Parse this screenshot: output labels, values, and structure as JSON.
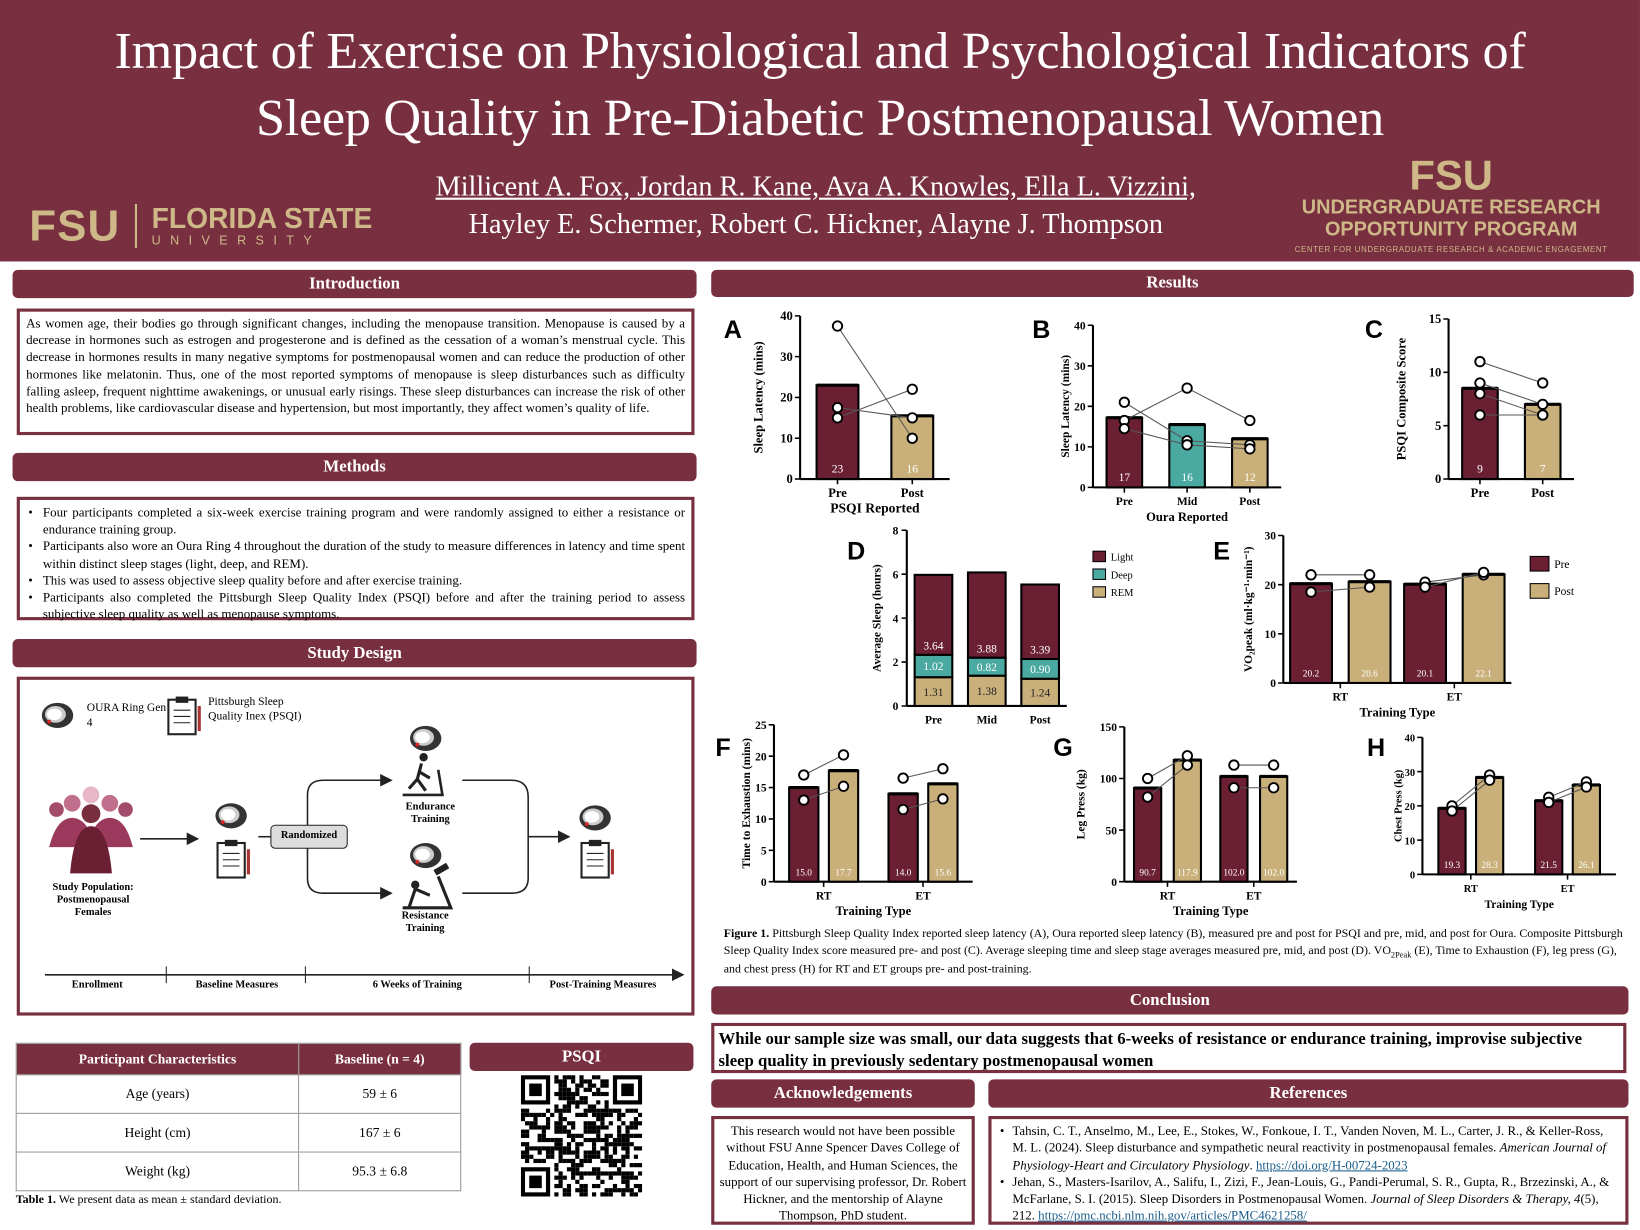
{
  "header": {
    "title_line1": "Impact of Exercise on Physiological and Psychological Indicators of",
    "title_line2": "Sleep Quality in Pre-Diabetic Postmenopausal Women",
    "authors_line1": "Millicent A. Fox, Jordan R. Kane, Ava A. Knowles, Ella L. Vizzini,",
    "authors_line2": "Hayley E. Schermer, Robert C. Hickner, Alayne J. Thompson",
    "logo_left": {
      "mark": "FSU",
      "name": "FLORIDA STATE",
      "sub": "UNIVERSITY"
    },
    "logo_right": {
      "mark": "FSU",
      "line1": "UNDERGRADUATE RESEARCH",
      "line2": "OPPORTUNITY PROGRAM",
      "line3": "CENTER FOR UNDERGRADUATE RESEARCH & ACADEMIC ENGAGEMENT"
    }
  },
  "colors": {
    "garnet": "#782f40",
    "gold": "#ceb888",
    "teal": "#4aa9a0",
    "bar_maroon": "#6b1f33",
    "bar_gold": "#c9b07a"
  },
  "introduction": {
    "title": "Introduction",
    "text": "As women age, their bodies go through significant changes, including the menopause transition.  Menopause is caused by a decrease in hormones such as estrogen and progesterone and is defined as the cessation of a woman’s menstrual cycle. This decrease in hormones results in many negative symptoms for postmenopausal women and can reduce the production of other hormones like melatonin. Thus, one of the most reported symptoms of menopause is sleep disturbances such as difficulty falling asleep, frequent nighttime awakenings, or unusual early risings. These sleep disturbances can increase the risk of other health problems, like cardiovascular disease and hypertension, but most importantly, they affect women’s quality of life."
  },
  "methods": {
    "title": "Methods",
    "bullets": [
      "Four participants completed a six-week exercise training program and were randomly assigned to either a resistance or endurance training group.",
      "Participants also wore an Oura Ring 4 throughout the duration of the study to measure differences in latency and time spent within distinct sleep stages (light, deep, and REM).",
      "This was used to assess objective sleep quality before and after exercise training.",
      "Participants also completed the Pittsburgh Sleep Quality Index (PSQI) before and after the training period to assess subjective sleep quality as well as menopause symptoms."
    ]
  },
  "study_design": {
    "title": "Study Design",
    "ring_label": "OURA Ring Gen 4",
    "psqi_label": "Pittsburgh Sleep Quality Inex (PSQI)",
    "population_label": "Study Population: Postmenopausal Females",
    "randomized": "Randomized",
    "endurance": "Endurance Training",
    "resistance": "Resistance Training",
    "timeline": [
      "Enrollment",
      "Baseline Measures",
      "6 Weeks of Training",
      "Post-Training Measures"
    ]
  },
  "table": {
    "headers": [
      "Participant Characteristics",
      "Baseline (n = 4)"
    ],
    "rows": [
      [
        "Age (years)",
        "59 ± 6"
      ],
      [
        "Height (cm)",
        "167 ± 6"
      ],
      [
        "Weight (kg)",
        "95.3 ± 6.8"
      ]
    ],
    "caption_bold": "Table 1.",
    "caption": " We present data as mean ± standard deviation."
  },
  "psqi": {
    "title": "PSQI"
  },
  "results": {
    "title": "Results"
  },
  "chart_data": [
    {
      "id": "A",
      "type": "bar",
      "panel": "A",
      "ylabel": "Sleep Latency (mins)",
      "xlabel": "PSQI Reported",
      "ylim": [
        0,
        40
      ],
      "ystep": 10,
      "link": "all",
      "groups": [
        {
          "label": "Pre",
          "bars": [
            {
              "value": 23,
              "label": "23",
              "color": "#6b1f33",
              "points": [
                37.5,
                17.5,
                15
              ]
            }
          ]
        },
        {
          "label": "Post",
          "bars": [
            {
              "value": 15.5,
              "label": "16",
              "color": "#c9b07a",
              "points": [
                10,
                15,
                22
              ]
            }
          ]
        }
      ]
    },
    {
      "id": "B",
      "type": "bar",
      "panel": "B",
      "ylabel": "Sleep Latency (mins)",
      "xlabel": "Oura Reported",
      "ylim": [
        0,
        40
      ],
      "ystep": 10,
      "link": "all",
      "groups": [
        {
          "label": "Pre",
          "bars": [
            {
              "value": 17.2,
              "label": "17",
              "color": "#6b1f33",
              "points": [
                21,
                16.5,
                14.5
              ]
            }
          ]
        },
        {
          "label": "Mid",
          "bars": [
            {
              "value": 15.5,
              "label": "16",
              "color": "#4aa9a0",
              "points": [
                11.5,
                24.5,
                10.5
              ]
            }
          ]
        },
        {
          "label": "Post",
          "bars": [
            {
              "value": 12,
              "label": "12",
              "color": "#c9b07a",
              "points": [
                10.5,
                16.5,
                9.5
              ]
            }
          ]
        }
      ]
    },
    {
      "id": "C",
      "type": "bar",
      "panel": "C",
      "ylabel": "PSQI Composite Score",
      "xlabel": "",
      "ylim": [
        0,
        15
      ],
      "ystep": 5,
      "link": "all",
      "groups": [
        {
          "label": "Pre",
          "bars": [
            {
              "value": 8.5,
              "label": "9",
              "color": "#6b1f33",
              "points": [
                11,
                9,
                8,
                6
              ]
            }
          ]
        },
        {
          "label": "Post",
          "bars": [
            {
              "value": 7,
              "label": "7",
              "color": "#c9b07a",
              "points": [
                9,
                7,
                6,
                6
              ]
            }
          ]
        }
      ]
    },
    {
      "id": "D",
      "type": "stacked-bar",
      "panel": "D",
      "ylabel": "Average Sleep (hours)",
      "ylim": [
        0,
        8
      ],
      "ystep": 2,
      "categories": [
        "Pre",
        "Mid",
        "Post"
      ],
      "series": [
        {
          "name": "REM",
          "color": "#c9b07a",
          "values": [
            1.31,
            1.38,
            1.24
          ]
        },
        {
          "name": "Deep",
          "color": "#4aa9a0",
          "values": [
            1.02,
            0.82,
            0.9
          ]
        },
        {
          "name": "Light",
          "color": "#6b1f33",
          "values": [
            3.64,
            3.88,
            3.39
          ]
        }
      ],
      "legend": [
        "Light",
        "Deep",
        "REM"
      ]
    },
    {
      "id": "E",
      "type": "bar",
      "panel": "E",
      "ylabel": "VO₂peak (ml·kg⁻¹·min⁻¹)",
      "xlabel": "Training Type",
      "ylim": [
        0,
        30
      ],
      "ystep": 10,
      "link": "group",
      "legend": [
        {
          "name": "Pre",
          "color": "#6b1f33"
        },
        {
          "name": "Post",
          "color": "#c9b07a"
        }
      ],
      "groups": [
        {
          "label": "RT",
          "bars": [
            {
              "value": 20.2,
              "label": "20.2",
              "color": "#6b1f33",
              "points": [
                22,
                18.5
              ]
            },
            {
              "value": 20.6,
              "label": "20.6",
              "color": "#c9b07a",
              "points": [
                22,
                19.5
              ]
            }
          ]
        },
        {
          "label": "ET",
          "bars": [
            {
              "value": 20.1,
              "label": "20.1",
              "color": "#6b1f33",
              "points": [
                20.5,
                19.5
              ]
            },
            {
              "value": 22.1,
              "label": "22.1",
              "color": "#c9b07a",
              "points": [
                22,
                22.5
              ]
            }
          ]
        }
      ]
    },
    {
      "id": "F",
      "type": "bar",
      "panel": "F",
      "ylabel": "Time to Exhaustion (mins)",
      "xlabel": "Training Type",
      "ylim": [
        0,
        25
      ],
      "ystep": 5,
      "link": "group",
      "groups": [
        {
          "label": "RT",
          "bars": [
            {
              "value": 15.0,
              "label": "15.0",
              "color": "#6b1f33",
              "points": [
                17,
                13
              ]
            },
            {
              "value": 17.7,
              "label": "17.7",
              "color": "#c9b07a",
              "points": [
                20.2,
                15.2
              ]
            }
          ]
        },
        {
          "label": "ET",
          "bars": [
            {
              "value": 14.0,
              "label": "14.0",
              "color": "#6b1f33",
              "points": [
                16.5,
                11.5
              ]
            },
            {
              "value": 15.6,
              "label": "15.6",
              "color": "#c9b07a",
              "points": [
                18,
                13.2
              ]
            }
          ]
        }
      ]
    },
    {
      "id": "G",
      "type": "bar",
      "panel": "G",
      "ylabel": "Leg Press (kg)",
      "xlabel": "Training Type",
      "ylim": [
        0,
        150
      ],
      "ystep": 50,
      "link": "group",
      "groups": [
        {
          "label": "RT",
          "bars": [
            {
              "value": 90.7,
              "label": "90.7",
              "color": "#6b1f33",
              "points": [
                100,
                82
              ]
            },
            {
              "value": 117.9,
              "label": "117.9",
              "color": "#c9b07a",
              "points": [
                122,
                113
              ]
            }
          ]
        },
        {
          "label": "ET",
          "bars": [
            {
              "value": 102.0,
              "label": "102.0",
              "color": "#6b1f33",
              "points": [
                113,
                91
              ]
            },
            {
              "value": 102.0,
              "label": "102.0",
              "color": "#c9b07a",
              "points": [
                113,
                91
              ]
            }
          ]
        }
      ]
    },
    {
      "id": "H",
      "type": "bar",
      "panel": "H",
      "ylabel": "Chest Press (kg)",
      "xlabel": "Training Type",
      "ylim": [
        0,
        40
      ],
      "ystep": 10,
      "link": "group",
      "groups": [
        {
          "label": "RT",
          "bars": [
            {
              "value": 19.3,
              "label": "19.3",
              "color": "#6b1f33",
              "points": [
                20,
                18.5
              ]
            },
            {
              "value": 28.3,
              "label": "28.3",
              "color": "#c9b07a",
              "points": [
                29,
                27.5
              ]
            }
          ]
        },
        {
          "label": "ET",
          "bars": [
            {
              "value": 21.5,
              "label": "21.5",
              "color": "#6b1f33",
              "points": [
                22.5,
                21
              ]
            },
            {
              "value": 26.1,
              "label": "26.1",
              "color": "#c9b07a",
              "points": [
                27,
                25.5
              ]
            }
          ]
        }
      ]
    }
  ],
  "figure_caption": {
    "bold": "Figure 1.",
    "part1": " Pittsburgh Sleep Quality Index reported sleep latency (A), Oura reported sleep latency (B), measured pre and post for PSQI and pre, mid, and post for Oura. Composite Pittsburgh Sleep Quality Index score measured pre- and post (C). Average sleeping time and sleep stage averages measured pre, mid, and post (D). VO",
    "sub": "2Peak",
    "part2": " (E), Time to Exhaustion (F), leg press (G), and chest press (H) for RT and ET groups pre- and post-training."
  },
  "conclusion": {
    "title": "Conclusion",
    "text": "While our sample size was small, our data suggests that 6-weeks of resistance or endurance training, improvise subjective sleep quality in previously sedentary postmenopausal women"
  },
  "acknowledgements": {
    "title": "Acknowledgements",
    "text": "This research would not have been possible without FSU Anne Spencer Daves College of Education, Health, and Human Sciences, the support of our supervising professor, Dr. Robert Hickner, and the mentorship of Alayne Thompson, PhD student."
  },
  "references": {
    "title": "References",
    "items": [
      {
        "text": "Tahsin, C. T., Anselmo, M., Lee, E., Stokes, W., Fonkoue, I. T., Vanden Noven, M. L., Carter, J. R., & Keller-Ross, M. L. (2024). Sleep disturbance and sympathetic neural reactivity in postmenopausal females. ",
        "journal": "American Journal of Physiology-Heart and Circulatory Physiology",
        "after": ". ",
        "link": "https://doi.org/H-00724-2023"
      },
      {
        "text": "Jehan, S., Masters-Isarilov, A., Salifu, I., Zizi, F., Jean-Louis, G., Pandi-Perumal, S. R., Gupta, R., Brzezinski, A., & McFarlane, S. I. (2015). Sleep Disorders in Postmenopausal Women. ",
        "journal": "Journal of Sleep Disorders & Therapy, 4",
        "after": "(5), 212. ",
        "link": "https://pmc.ncbi.nlm.nih.gov/articles/PMC4621258/"
      }
    ]
  }
}
